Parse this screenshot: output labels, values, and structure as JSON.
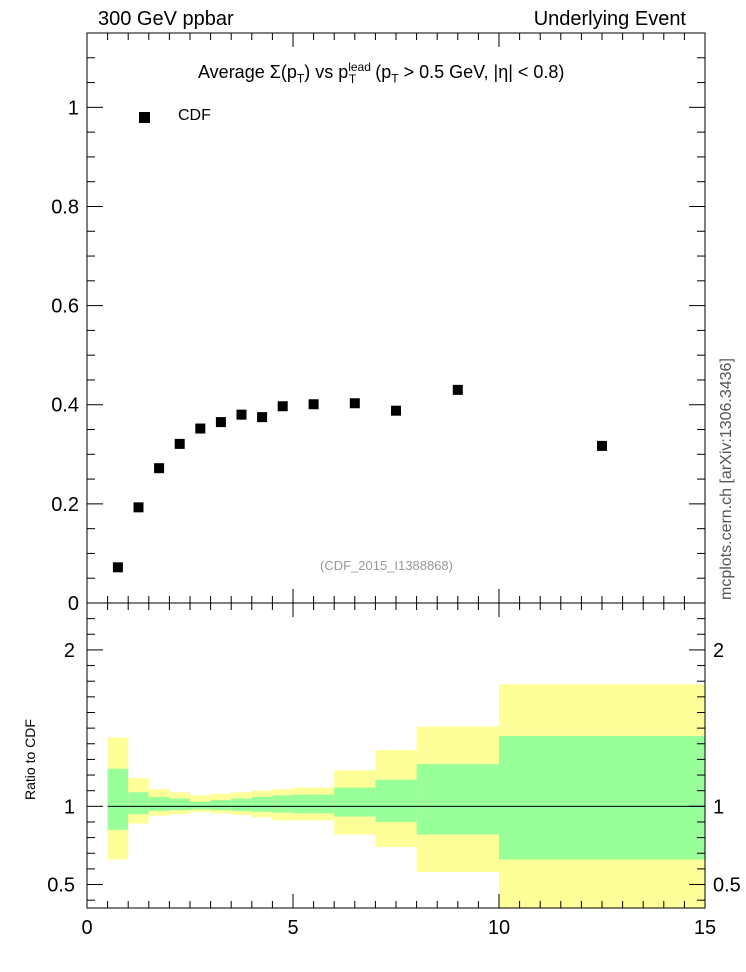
{
  "header": {
    "left": "300 GeV ppbar",
    "right": "Underlying Event",
    "side": "mcplots.cern.ch [arXiv:1306.3436]"
  },
  "title": {
    "prefix": "Average ",
    "sigma": "Σ(p",
    "sub1": "T",
    "mid": ") vs p",
    "sup": "lead",
    "sub2": "T",
    "paren": " (p",
    "sub3": "T",
    "suffix": " > 0.5 GeV, |η| < 0.8)"
  },
  "legend": {
    "label": "CDF"
  },
  "reference": "(CDF_2015_I1388868)",
  "ratio_label": "Ratio to CDF",
  "colors": {
    "inner_band": "#99ff99",
    "outer_band": "#ffff99",
    "marker": "#000000"
  },
  "chart_data": [
    {
      "type": "scatter",
      "series": [
        {
          "name": "CDF",
          "x": [
            0.75,
            1.25,
            1.75,
            2.25,
            2.75,
            3.25,
            3.75,
            4.25,
            4.75,
            5.5,
            6.5,
            7.5,
            9.0,
            12.5
          ],
          "y": [
            0.072,
            0.193,
            0.272,
            0.321,
            0.352,
            0.365,
            0.38,
            0.375,
            0.397,
            0.401,
            0.403,
            0.388,
            0.43,
            0.317
          ]
        }
      ],
      "xlim": [
        0,
        15
      ],
      "ylim": [
        0,
        1.15
      ],
      "yticks": [
        0,
        0.2,
        0.4,
        0.6,
        0.8,
        1
      ],
      "yticklabels": [
        "0",
        "0.2",
        "0.4",
        "0.6",
        "0.8",
        "1"
      ]
    },
    {
      "type": "area",
      "ylabel": "Ratio to CDF",
      "bins": [
        {
          "lo": 0.5,
          "hi": 1.0,
          "inner": [
            0.85,
            1.24
          ],
          "outer": [
            0.66,
            1.44
          ]
        },
        {
          "lo": 1.0,
          "hi": 1.5,
          "inner": [
            0.95,
            1.09
          ],
          "outer": [
            0.89,
            1.18
          ]
        },
        {
          "lo": 1.5,
          "hi": 2.0,
          "inner": [
            0.97,
            1.06
          ],
          "outer": [
            0.94,
            1.11
          ]
        },
        {
          "lo": 2.0,
          "hi": 2.5,
          "inner": [
            0.975,
            1.05
          ],
          "outer": [
            0.95,
            1.09
          ]
        },
        {
          "lo": 2.5,
          "hi": 3.0,
          "inner": [
            0.98,
            1.03
          ],
          "outer": [
            0.965,
            1.07
          ]
        },
        {
          "lo": 3.0,
          "hi": 3.5,
          "inner": [
            0.975,
            1.04
          ],
          "outer": [
            0.955,
            1.08
          ]
        },
        {
          "lo": 3.5,
          "hi": 4.0,
          "inner": [
            0.97,
            1.05
          ],
          "outer": [
            0.945,
            1.09
          ]
        },
        {
          "lo": 4.0,
          "hi": 4.5,
          "inner": [
            0.965,
            1.06
          ],
          "outer": [
            0.93,
            1.1
          ]
        },
        {
          "lo": 4.5,
          "hi": 5.0,
          "inner": [
            0.96,
            1.07
          ],
          "outer": [
            0.91,
            1.11
          ]
        },
        {
          "lo": 5.0,
          "hi": 6.0,
          "inner": [
            0.955,
            1.075
          ],
          "outer": [
            0.91,
            1.12
          ]
        },
        {
          "lo": 6.0,
          "hi": 7.0,
          "inner": [
            0.935,
            1.12
          ],
          "outer": [
            0.82,
            1.23
          ]
        },
        {
          "lo": 7.0,
          "hi": 8.0,
          "inner": [
            0.9,
            1.17
          ],
          "outer": [
            0.74,
            1.36
          ]
        },
        {
          "lo": 8.0,
          "hi": 10.0,
          "inner": [
            0.82,
            1.27
          ],
          "outer": [
            0.58,
            1.51
          ]
        },
        {
          "lo": 10.0,
          "hi": 15.0,
          "inner": [
            0.66,
            1.45
          ],
          "outer": [
            0.35,
            1.78
          ]
        }
      ],
      "reference_line": 1,
      "xlim": [
        0,
        15
      ],
      "ylim": [
        0.35,
        2.3
      ],
      "yticks": [
        0.5,
        1,
        2
      ],
      "yticklabels": [
        "0.5",
        "1",
        "2"
      ],
      "xticks": [
        0,
        5,
        10,
        15
      ],
      "xticklabels": [
        "0",
        "5",
        "10",
        "15"
      ]
    }
  ]
}
